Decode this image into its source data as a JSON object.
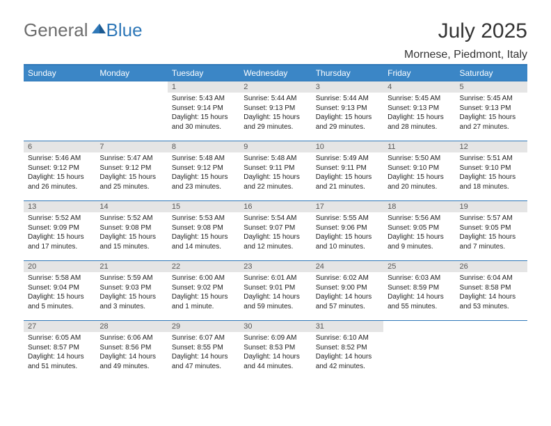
{
  "logo": {
    "general": "General",
    "blue": "Blue"
  },
  "title": "July 2025",
  "location": "Mornese, Piedmont, Italy",
  "colors": {
    "accent": "#3b86c6",
    "rule": "#2f78b8",
    "daynum_bg": "#e5e5e5",
    "text": "#222222",
    "logo_gray": "#6d6d6d"
  },
  "day_headers": [
    "Sunday",
    "Monday",
    "Tuesday",
    "Wednesday",
    "Thursday",
    "Friday",
    "Saturday"
  ],
  "weeks": [
    [
      {
        "n": "",
        "sr": "",
        "ss": "",
        "dl": ""
      },
      {
        "n": "",
        "sr": "",
        "ss": "",
        "dl": ""
      },
      {
        "n": "1",
        "sr": "5:43 AM",
        "ss": "9:14 PM",
        "dl": "15 hours and 30 minutes."
      },
      {
        "n": "2",
        "sr": "5:44 AM",
        "ss": "9:13 PM",
        "dl": "15 hours and 29 minutes."
      },
      {
        "n": "3",
        "sr": "5:44 AM",
        "ss": "9:13 PM",
        "dl": "15 hours and 29 minutes."
      },
      {
        "n": "4",
        "sr": "5:45 AM",
        "ss": "9:13 PM",
        "dl": "15 hours and 28 minutes."
      },
      {
        "n": "5",
        "sr": "5:45 AM",
        "ss": "9:13 PM",
        "dl": "15 hours and 27 minutes."
      }
    ],
    [
      {
        "n": "6",
        "sr": "5:46 AM",
        "ss": "9:12 PM",
        "dl": "15 hours and 26 minutes."
      },
      {
        "n": "7",
        "sr": "5:47 AM",
        "ss": "9:12 PM",
        "dl": "15 hours and 25 minutes."
      },
      {
        "n": "8",
        "sr": "5:48 AM",
        "ss": "9:12 PM",
        "dl": "15 hours and 23 minutes."
      },
      {
        "n": "9",
        "sr": "5:48 AM",
        "ss": "9:11 PM",
        "dl": "15 hours and 22 minutes."
      },
      {
        "n": "10",
        "sr": "5:49 AM",
        "ss": "9:11 PM",
        "dl": "15 hours and 21 minutes."
      },
      {
        "n": "11",
        "sr": "5:50 AM",
        "ss": "9:10 PM",
        "dl": "15 hours and 20 minutes."
      },
      {
        "n": "12",
        "sr": "5:51 AM",
        "ss": "9:10 PM",
        "dl": "15 hours and 18 minutes."
      }
    ],
    [
      {
        "n": "13",
        "sr": "5:52 AM",
        "ss": "9:09 PM",
        "dl": "15 hours and 17 minutes."
      },
      {
        "n": "14",
        "sr": "5:52 AM",
        "ss": "9:08 PM",
        "dl": "15 hours and 15 minutes."
      },
      {
        "n": "15",
        "sr": "5:53 AM",
        "ss": "9:08 PM",
        "dl": "15 hours and 14 minutes."
      },
      {
        "n": "16",
        "sr": "5:54 AM",
        "ss": "9:07 PM",
        "dl": "15 hours and 12 minutes."
      },
      {
        "n": "17",
        "sr": "5:55 AM",
        "ss": "9:06 PM",
        "dl": "15 hours and 10 minutes."
      },
      {
        "n": "18",
        "sr": "5:56 AM",
        "ss": "9:05 PM",
        "dl": "15 hours and 9 minutes."
      },
      {
        "n": "19",
        "sr": "5:57 AM",
        "ss": "9:05 PM",
        "dl": "15 hours and 7 minutes."
      }
    ],
    [
      {
        "n": "20",
        "sr": "5:58 AM",
        "ss": "9:04 PM",
        "dl": "15 hours and 5 minutes."
      },
      {
        "n": "21",
        "sr": "5:59 AM",
        "ss": "9:03 PM",
        "dl": "15 hours and 3 minutes."
      },
      {
        "n": "22",
        "sr": "6:00 AM",
        "ss": "9:02 PM",
        "dl": "15 hours and 1 minute."
      },
      {
        "n": "23",
        "sr": "6:01 AM",
        "ss": "9:01 PM",
        "dl": "14 hours and 59 minutes."
      },
      {
        "n": "24",
        "sr": "6:02 AM",
        "ss": "9:00 PM",
        "dl": "14 hours and 57 minutes."
      },
      {
        "n": "25",
        "sr": "6:03 AM",
        "ss": "8:59 PM",
        "dl": "14 hours and 55 minutes."
      },
      {
        "n": "26",
        "sr": "6:04 AM",
        "ss": "8:58 PM",
        "dl": "14 hours and 53 minutes."
      }
    ],
    [
      {
        "n": "27",
        "sr": "6:05 AM",
        "ss": "8:57 PM",
        "dl": "14 hours and 51 minutes."
      },
      {
        "n": "28",
        "sr": "6:06 AM",
        "ss": "8:56 PM",
        "dl": "14 hours and 49 minutes."
      },
      {
        "n": "29",
        "sr": "6:07 AM",
        "ss": "8:55 PM",
        "dl": "14 hours and 47 minutes."
      },
      {
        "n": "30",
        "sr": "6:09 AM",
        "ss": "8:53 PM",
        "dl": "14 hours and 44 minutes."
      },
      {
        "n": "31",
        "sr": "6:10 AM",
        "ss": "8:52 PM",
        "dl": "14 hours and 42 minutes."
      },
      {
        "n": "",
        "sr": "",
        "ss": "",
        "dl": ""
      },
      {
        "n": "",
        "sr": "",
        "ss": "",
        "dl": ""
      }
    ]
  ],
  "labels": {
    "sunrise": "Sunrise: ",
    "sunset": "Sunset: ",
    "daylight": "Daylight: "
  }
}
